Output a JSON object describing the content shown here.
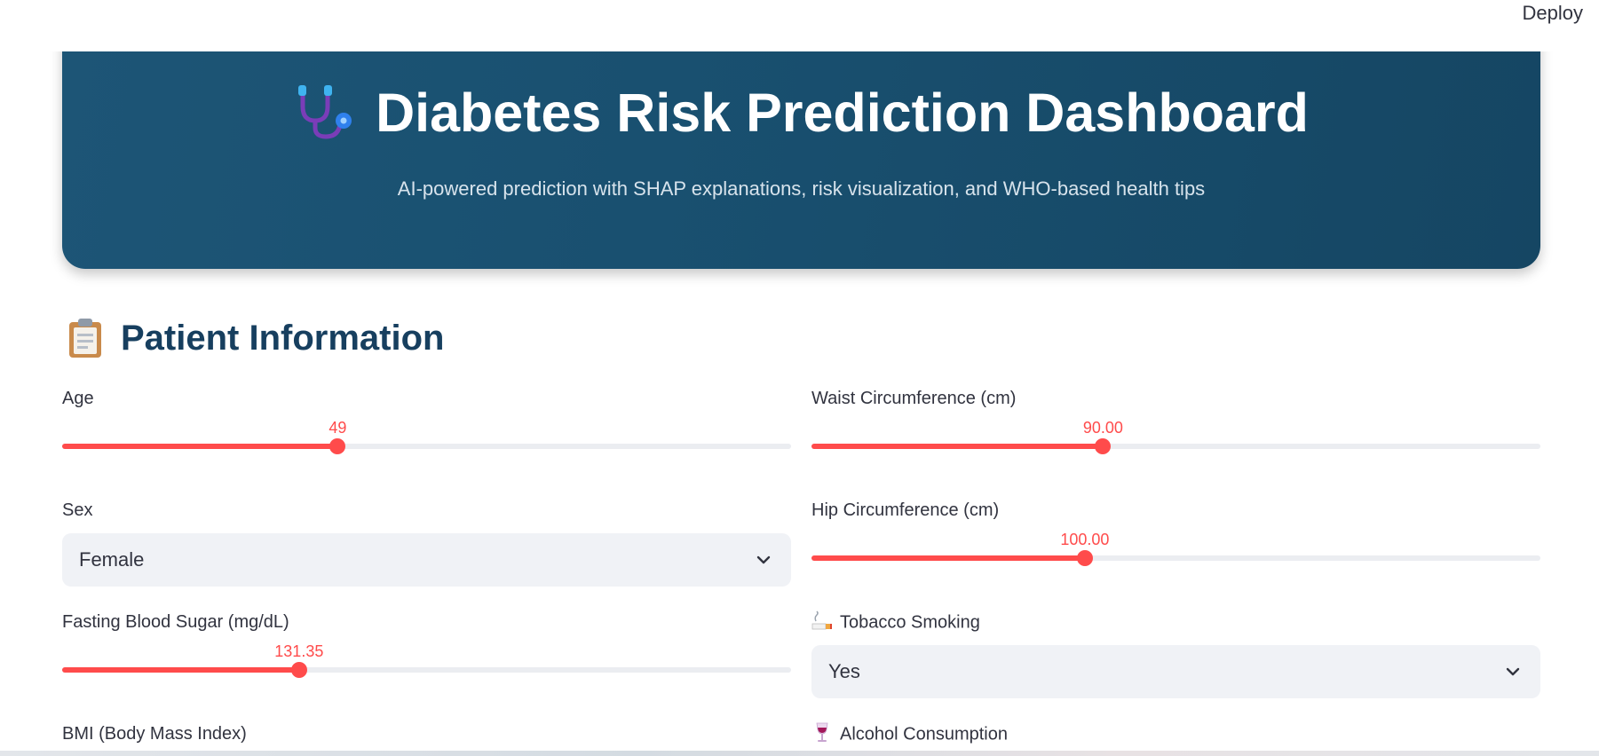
{
  "header": {
    "deploy_label": "Deploy"
  },
  "hero": {
    "icon": "stethoscope-icon",
    "title": "Diabetes Risk Prediction Dashboard",
    "subtitle": "AI-powered prediction with SHAP explanations, risk visualization, and WHO-based health tips"
  },
  "section": {
    "icon": "clipboard-icon",
    "title": "Patient Information"
  },
  "fields": {
    "age": {
      "label": "Age",
      "value_text": "49",
      "fill_fraction": 0.378
    },
    "sex": {
      "label": "Sex",
      "selected": "Female"
    },
    "fasting_blood_sugar": {
      "label": "Fasting Blood Sugar (mg/dL)",
      "value_text": "131.35",
      "fill_fraction": 0.325
    },
    "bmi": {
      "label": "BMI (Body Mass Index)"
    },
    "waist": {
      "label": "Waist Circumference (cm)",
      "value_text": "90.00",
      "fill_fraction": 0.4
    },
    "hip": {
      "label": "Hip Circumference (cm)",
      "value_text": "100.00",
      "fill_fraction": 0.375
    },
    "tobacco": {
      "label": "Tobacco Smoking",
      "icon": "cigarette-icon",
      "selected": "Yes"
    },
    "alcohol": {
      "label": "Alcohol Consumption",
      "icon": "wine-glass-icon"
    }
  },
  "colors": {
    "accent": "#ff4b4b",
    "hero_bg": "#1a5272",
    "section_title": "#173f5f"
  }
}
